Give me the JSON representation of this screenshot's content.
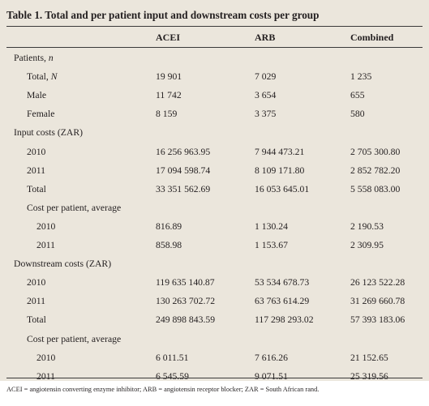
{
  "table": {
    "title": "Table 1. Total and per patient input and downstream costs per group",
    "headers": [
      "ACEI",
      "ARB",
      "Combined"
    ],
    "rows": [
      {
        "label": "Patients, n",
        "level": 0,
        "a": "",
        "b": "",
        "c": ""
      },
      {
        "label": "Total, N",
        "level": 1,
        "a": "19 901",
        "b": "7 029",
        "c": "1 235"
      },
      {
        "label": "Male",
        "level": 1,
        "a": "11 742",
        "b": "3 654",
        "c": "655"
      },
      {
        "label": "Female",
        "level": 1,
        "a": "8 159",
        "b": "3 375",
        "c": "580"
      },
      {
        "label": "Input costs (ZAR)",
        "level": 0,
        "a": "",
        "b": "",
        "c": ""
      },
      {
        "label": "2010",
        "level": 1,
        "a": "16 256 963.95",
        "b": "7 944 473.21",
        "c": "2 705 300.80"
      },
      {
        "label": "2011",
        "level": 1,
        "a": "17 094 598.74",
        "b": "8 109 171.80",
        "c": "2 852 782.20"
      },
      {
        "label": "Total",
        "level": 1,
        "a": "33 351 562.69",
        "b": "16 053 645.01",
        "c": "5 558 083.00"
      },
      {
        "label": "Cost per patient, average",
        "level": 1,
        "a": "",
        "b": "",
        "c": ""
      },
      {
        "label": "2010",
        "level": 2,
        "a": "816.89",
        "b": "1 130.24",
        "c": "2 190.53"
      },
      {
        "label": "2011",
        "level": 2,
        "a": "858.98",
        "b": "1 153.67",
        "c": "2 309.95"
      },
      {
        "label": "Downstream costs (ZAR)",
        "level": 0,
        "a": "",
        "b": "",
        "c": ""
      },
      {
        "label": "2010",
        "level": 1,
        "a": "119 635 140.87",
        "b": "53 534 678.73",
        "c": "26 123 522.28"
      },
      {
        "label": "2011",
        "level": 1,
        "a": "130 263 702.72",
        "b": "63 763 614.29",
        "c": "31 269 660.78"
      },
      {
        "label": "Total",
        "level": 1,
        "a": "249 898 843.59",
        "b": "117 298 293.02",
        "c": "57 393 183.06"
      },
      {
        "label": "Cost per patient, average",
        "level": 1,
        "a": "",
        "b": "",
        "c": ""
      },
      {
        "label": "2010",
        "level": 2,
        "a": "6 011.51",
        "b": "7 616.26",
        "c": "21 152.65"
      },
      {
        "label": "2011",
        "level": 2,
        "a": "6 545.59",
        "b": "9 071.51",
        "c": "25 319.56"
      }
    ],
    "footnote": "ACEI = angiotensin converting enzyme inhibitor; ARB = angiotensin receptor blocker; ZAR = South African rand."
  }
}
